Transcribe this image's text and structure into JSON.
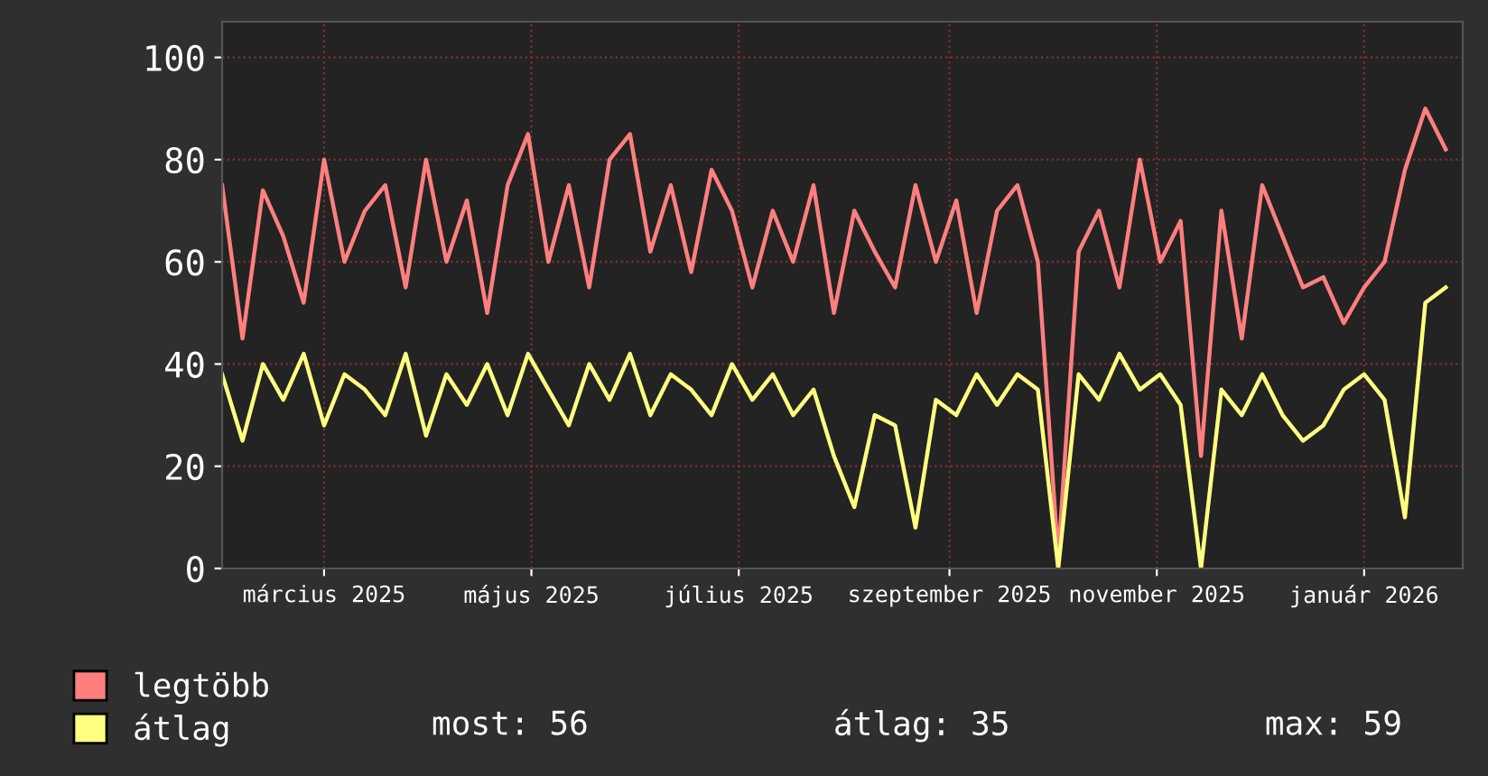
{
  "chart_data": {
    "type": "line",
    "x": [
      "2025-02-13",
      "2025-02-19",
      "2025-02-25",
      "2025-03-03",
      "2025-03-09",
      "2025-03-15",
      "2025-03-21",
      "2025-03-27",
      "2025-04-02",
      "2025-04-08",
      "2025-04-14",
      "2025-04-20",
      "2025-04-26",
      "2025-05-02",
      "2025-05-08",
      "2025-05-14",
      "2025-05-20",
      "2025-05-26",
      "2025-06-01",
      "2025-06-07",
      "2025-06-13",
      "2025-06-19",
      "2025-06-25",
      "2025-07-01",
      "2025-07-07",
      "2025-07-13",
      "2025-07-19",
      "2025-07-25",
      "2025-07-31",
      "2025-08-06",
      "2025-08-12",
      "2025-08-18",
      "2025-08-24",
      "2025-08-30",
      "2025-09-05",
      "2025-09-11",
      "2025-09-17",
      "2025-09-23",
      "2025-09-29",
      "2025-10-05",
      "2025-10-11",
      "2025-10-17",
      "2025-10-23",
      "2025-10-29",
      "2025-11-04",
      "2025-11-10",
      "2025-11-16",
      "2025-11-22",
      "2025-11-28",
      "2025-12-04",
      "2025-12-10",
      "2025-12-16",
      "2025-12-22",
      "2025-12-28",
      "2026-01-03",
      "2026-01-09",
      "2026-01-15",
      "2026-01-21",
      "2026-01-27",
      "2026-02-02",
      "2026-02-08"
    ],
    "series": [
      {
        "name": "legtöbb",
        "color": "#ff7f7f",
        "values": [
          75,
          45,
          74,
          65,
          52,
          80,
          60,
          70,
          75,
          55,
          80,
          60,
          72,
          50,
          75,
          85,
          60,
          75,
          55,
          80,
          85,
          62,
          75,
          58,
          78,
          70,
          55,
          70,
          60,
          75,
          50,
          70,
          62,
          55,
          75,
          60,
          72,
          50,
          70,
          75,
          60,
          2,
          62,
          70,
          55,
          80,
          60,
          68,
          22,
          70,
          45,
          75,
          65,
          55,
          57,
          48,
          55,
          60,
          78,
          90,
          82
        ]
      },
      {
        "name": "átlag",
        "color": "#ffff80",
        "values": [
          38,
          25,
          40,
          33,
          42,
          28,
          38,
          35,
          30,
          42,
          26,
          38,
          32,
          40,
          30,
          42,
          35,
          28,
          40,
          33,
          42,
          30,
          38,
          35,
          30,
          40,
          33,
          38,
          30,
          35,
          22,
          12,
          30,
          28,
          8,
          33,
          30,
          38,
          32,
          38,
          35,
          0,
          38,
          33,
          42,
          35,
          38,
          32,
          0,
          35,
          30,
          38,
          30,
          25,
          28,
          35,
          38,
          33,
          10,
          52,
          55
        ]
      }
    ],
    "xlim": [
      "2025-02-13",
      "2026-02-13"
    ],
    "xticks": [
      {
        "value": "2025-03-15",
        "label": "március 2025"
      },
      {
        "value": "2025-05-15",
        "label": "május 2025"
      },
      {
        "value": "2025-07-15",
        "label": "július 2025"
      },
      {
        "value": "2025-09-15",
        "label": "szeptember 2025"
      },
      {
        "value": "2025-11-15",
        "label": "november 2025"
      },
      {
        "value": "2026-01-15",
        "label": "január 2026"
      }
    ],
    "ylim": [
      0,
      107
    ],
    "yticks": [
      0,
      20,
      40,
      60,
      80,
      100
    ],
    "grid": true,
    "legend": "bottom left",
    "line_style": "solid",
    "annotations": [
      "most: 56",
      "átlag: 35",
      "max: 59"
    ]
  }
}
